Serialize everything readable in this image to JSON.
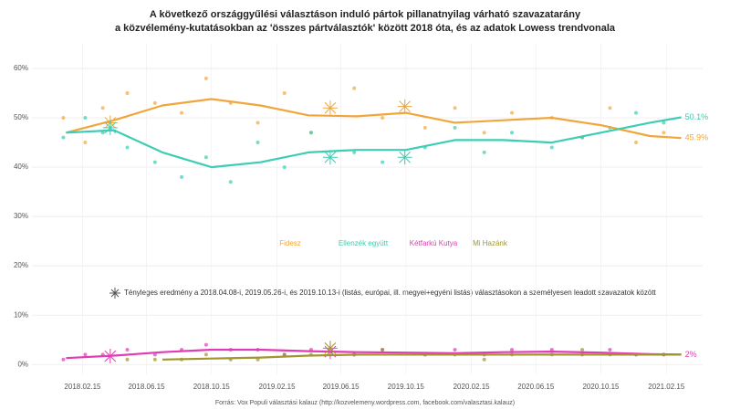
{
  "chart_data": {
    "type": "line",
    "title": "A következő országgyűlési választáson induló pártok pillanatnyilag várható szavazatarány",
    "subtitle": "a közvélemény-kutatásokban az 'összes pártválasztók' között 2018 óta, és az adatok Lowess trendvonala",
    "source": "Forrás: Vox Populi választási kalauz (http://kozvelemeny.wordpress.com, facebook.com/valasztasi.kalauz)",
    "results_label": "Tényleges eredmény a 2018.04.08-i, 2019.05.26-i, és 2019.10.13-i (listás, európai, ill. megyei+egyéni listás) választásokon a személyesen leadott szavazatok között",
    "xlim": [
      "2017.11.12",
      "2021.04.24"
    ],
    "xticks": [
      "2018.02.15",
      "2018.06.15",
      "2018.10.15",
      "2019.02.15",
      "2019.06.15",
      "2019.10.15",
      "2020.02.15",
      "2020.06.15",
      "2020.10.15",
      "2021.02.15"
    ],
    "ylim": [
      -2,
      65
    ],
    "yticks": [
      {
        "value": 0,
        "label": "0%"
      },
      {
        "value": 10,
        "label": "10%"
      },
      {
        "value": 20,
        "label": "20%"
      },
      {
        "value": 30,
        "label": "30%"
      },
      {
        "value": 40,
        "label": "40%"
      },
      {
        "value": 50,
        "label": "50%"
      },
      {
        "value": 60,
        "label": "60%"
      }
    ],
    "grid": true,
    "x": [
      "2018.01.15",
      "2018.04.15",
      "2018.07.15",
      "2018.10.15",
      "2019.01.15",
      "2019.04.15",
      "2019.07.15",
      "2019.10.15",
      "2020.01.15",
      "2020.04.15",
      "2020.07.15",
      "2020.10.15",
      "2021.01.15",
      "2021.03.15"
    ],
    "polls_x": [
      "2018.01.10",
      "2018.02.20",
      "2018.03.25",
      "2018.05.10",
      "2018.07.01",
      "2018.08.20",
      "2018.10.05",
      "2018.11.20",
      "2019.01.10",
      "2019.03.01",
      "2019.04.20",
      "2019.07.10",
      "2019.09.01",
      "2019.11.20",
      "2020.01.15",
      "2020.03.10",
      "2020.05.01",
      "2020.07.15",
      "2020.09.10",
      "2020.11.01",
      "2020.12.20",
      "2021.02.10"
    ],
    "results_x": [
      "2018.04.08",
      "2019.05.26",
      "2019.10.13"
    ],
    "series": [
      {
        "name": "Fidesz",
        "color": "#f0a63c",
        "values": [
          47,
          49.5,
          52.5,
          53.8,
          52.5,
          50.5,
          50.3,
          51,
          49,
          49.5,
          50,
          48.5,
          46.3,
          45.9
        ],
        "end_label": "45.9%",
        "polls": [
          50,
          45,
          52,
          55,
          53,
          51,
          58,
          53,
          49,
          55,
          47,
          56,
          50,
          48,
          52,
          47,
          51,
          50,
          46,
          52,
          45,
          47
        ],
        "results": [
          49,
          52,
          52.3
        ]
      },
      {
        "name": "Ellenzék együtt",
        "color": "#3ccdb4",
        "values": [
          47,
          47.5,
          43,
          40,
          41,
          43,
          43.5,
          43.5,
          45.5,
          45.5,
          45,
          47,
          49,
          50.1
        ],
        "end_label": "50.1%",
        "polls": [
          46,
          50,
          47,
          44,
          41,
          38,
          42,
          37,
          45,
          40,
          47,
          43,
          41,
          44,
          48,
          43,
          47,
          44,
          46,
          48,
          51,
          49
        ],
        "results": [
          48,
          42,
          42
        ]
      },
      {
        "name": "Kétfarkú Kutya",
        "color": "#e03cb4",
        "values": [
          1.3,
          1.8,
          2.5,
          3,
          3,
          2.7,
          2.5,
          2.4,
          2.3,
          2.5,
          2.6,
          2.4,
          2.1,
          2
        ],
        "end_label": "2%",
        "polls": [
          1,
          2,
          2,
          3,
          2,
          3,
          4,
          3,
          3,
          2,
          3,
          2,
          3,
          2,
          3,
          2,
          3,
          3,
          2,
          3,
          2,
          2
        ],
        "results": [
          1.7,
          2.6,
          null
        ]
      },
      {
        "name": "Mi Hazánk",
        "color": "#a0962d",
        "values": [
          null,
          null,
          1,
          1.2,
          1.4,
          1.8,
          2,
          2,
          2,
          2,
          2,
          2,
          2,
          2
        ],
        "polls": [
          null,
          null,
          null,
          1,
          1,
          1,
          2,
          1,
          1,
          2,
          2,
          2,
          3,
          2,
          2,
          1,
          2,
          2,
          3,
          2,
          2,
          2
        ],
        "results": [
          null,
          3.3,
          null
        ]
      }
    ]
  }
}
